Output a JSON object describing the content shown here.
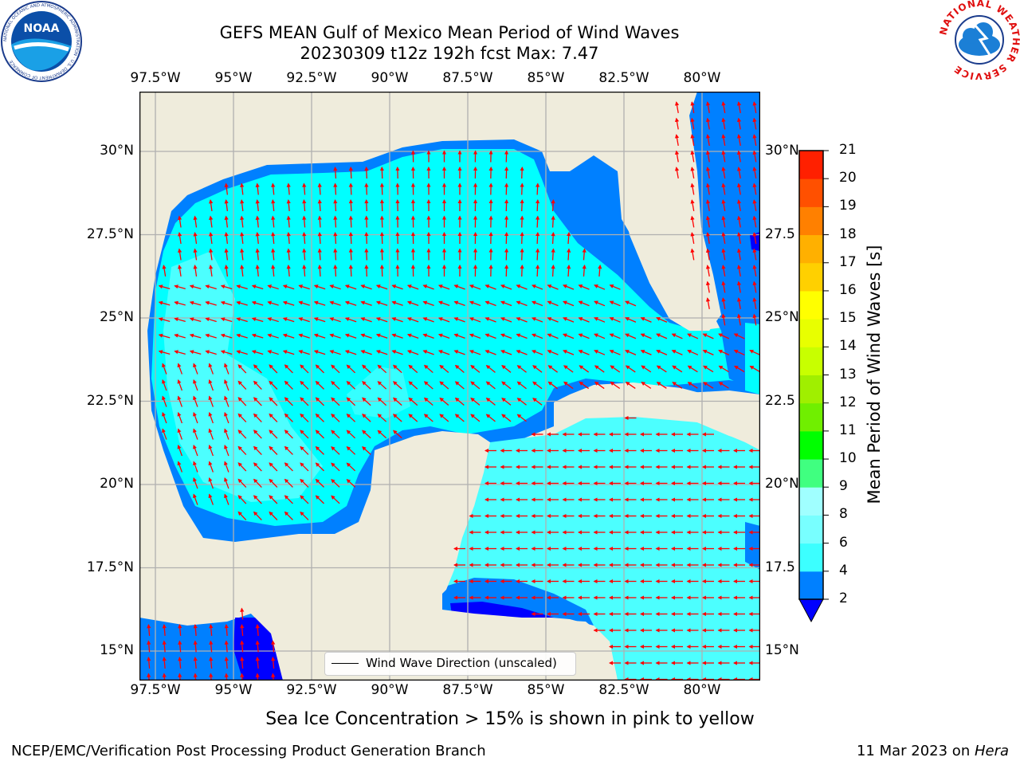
{
  "header": {
    "title_line1": "GEFS MEAN Gulf of Mexico Mean Period of Wind Waves",
    "title_line2": "20230309 t12z 192h fcst   Max: 7.47"
  },
  "logos": {
    "left": "NOAA",
    "left_ring_text": "NATIONAL OCEANIC AND ATMOSPHERIC ADMINISTRATION · U.S. DEPARTMENT OF COMMERCE",
    "right_ring_text": "NATIONAL WEATHER SERVICE"
  },
  "map": {
    "lon_labels": [
      "97.5°W",
      "95°W",
      "92.5°W",
      "90°W",
      "87.5°W",
      "85°W",
      "82.5°W",
      "80°W"
    ],
    "lat_labels_left": [
      "30°N",
      "27.5°N",
      "25°N",
      "22.5°N",
      "20°N",
      "17.5°N",
      "15°N"
    ],
    "lat_labels_right": [
      "30°N",
      "27.5",
      "25°N",
      "22.5",
      "20°N",
      "17.5",
      "15°N"
    ],
    "legend_label": "Wind Wave Direction (unscaled)",
    "colors": {
      "land": "#efecdc",
      "sea_dominant": "#00ffff",
      "sea_light": "#4cffff",
      "sea_deep": "#0080ff",
      "sea_lowest": "#0000ff",
      "arrow": "#ff0000",
      "grid": "#b0b0b0"
    }
  },
  "colorbar": {
    "label": "Mean Period of Wind Waves [s]",
    "ticks": [
      "2",
      "4",
      "6",
      "8",
      "9",
      "10",
      "11",
      "12",
      "13",
      "14",
      "15",
      "16",
      "17",
      "18",
      "19",
      "20",
      "21"
    ],
    "colors": [
      "#0080ff",
      "#00ffff",
      "#3cffff",
      "#78ffff",
      "#a0ffff",
      "#40ff80",
      "#00ff00",
      "#70ef00",
      "#a0ef00",
      "#c8ff00",
      "#e8ff00",
      "#ffff00",
      "#ffd000",
      "#ffb000",
      "#ff8000",
      "#ff5000",
      "#ff2000",
      "#ff0000"
    ],
    "under_color": "#0000ff"
  },
  "note": "Sea Ice Concentration > 15% is shown in pink to yellow",
  "footer": {
    "left": "NCEP/EMC/Verification Post Processing Product Generation Branch",
    "right_date": "11 Mar 2023 on ",
    "right_host": "Hera"
  }
}
